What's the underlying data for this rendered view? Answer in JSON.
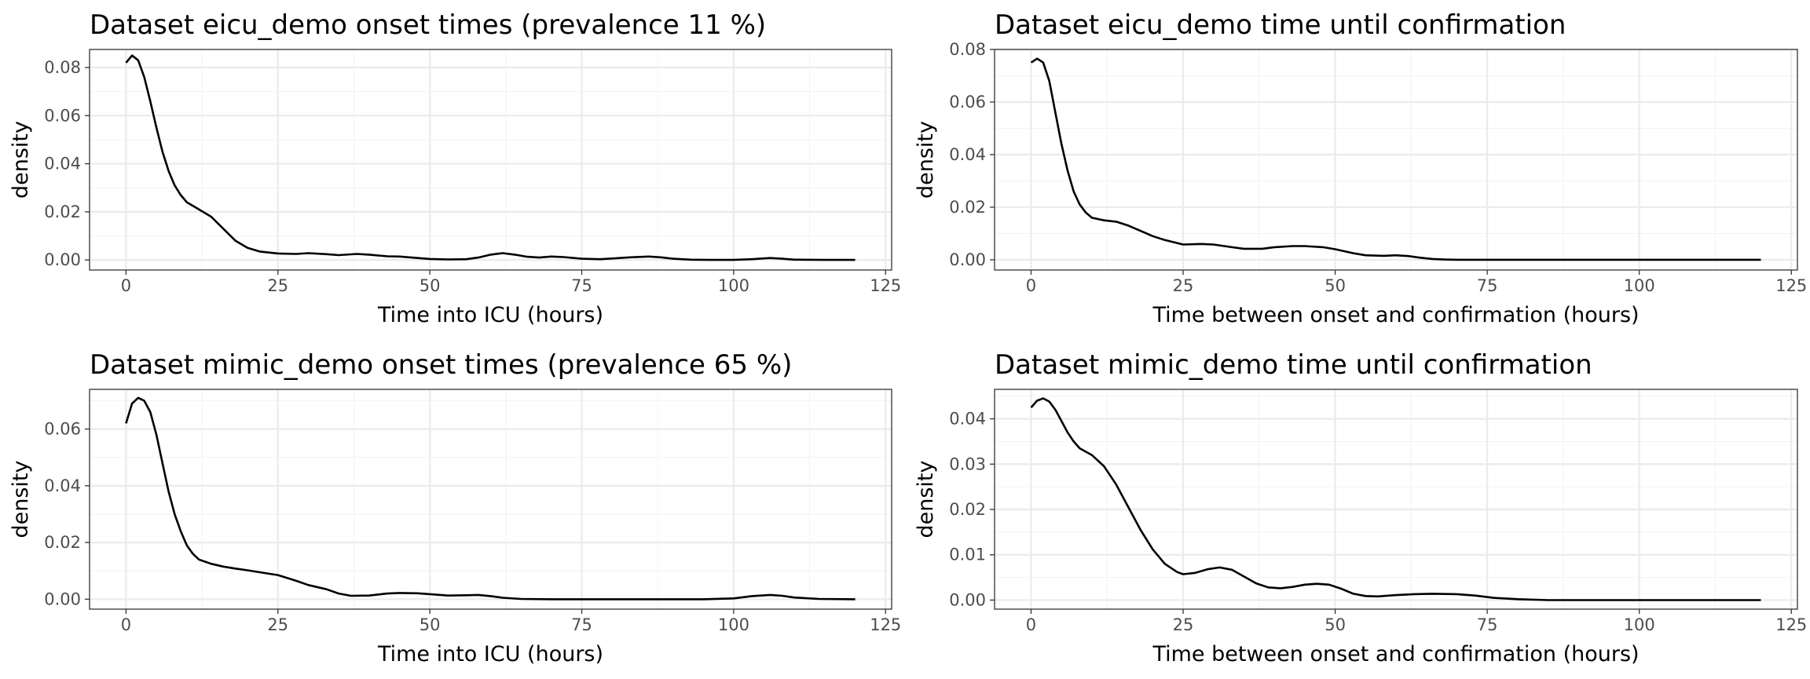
{
  "chart_data": [
    {
      "type": "line",
      "title": "Dataset eicu_demo onset times (prevalence 11 %)",
      "xlabel": "Time into ICU (hours)",
      "ylabel": "density",
      "xlim": [
        -6,
        126
      ],
      "ylim": [
        -0.0042,
        0.0875
      ],
      "x_ticks": [
        0,
        25,
        50,
        75,
        100,
        125
      ],
      "x_tick_labels": [
        "0",
        "25",
        "50",
        "75",
        "100",
        "125"
      ],
      "y_ticks": [
        0,
        0.02,
        0.04,
        0.06,
        0.08
      ],
      "y_tick_labels": [
        "0.00",
        "0.02",
        "0.04",
        "0.06",
        "0.08"
      ],
      "grid": true,
      "series": [
        {
          "x": [
            0,
            1,
            2,
            3,
            4,
            5,
            6,
            7,
            8,
            9,
            10,
            12,
            14,
            16,
            18,
            20,
            22,
            25,
            28,
            30,
            33,
            35,
            38,
            40,
            43,
            45,
            48,
            50,
            53,
            56,
            58,
            60,
            62,
            64,
            66,
            68,
            70,
            72,
            75,
            78,
            80,
            83,
            86,
            88,
            90,
            93,
            96,
            100,
            103,
            106,
            108,
            110,
            115,
            120
          ],
          "y": [
            0.082,
            0.085,
            0.083,
            0.076,
            0.066,
            0.055,
            0.045,
            0.037,
            0.031,
            0.027,
            0.024,
            0.021,
            0.018,
            0.013,
            0.008,
            0.005,
            0.0035,
            0.0027,
            0.0025,
            0.0028,
            0.0024,
            0.002,
            0.0025,
            0.0022,
            0.0015,
            0.0014,
            0.0008,
            0.0004,
            0.0002,
            0.0003,
            0.001,
            0.0022,
            0.0028,
            0.0022,
            0.0013,
            0.001,
            0.0014,
            0.0012,
            0.0005,
            0.0003,
            0.0006,
            0.0011,
            0.0014,
            0.0011,
            0.0005,
            0.0001,
            0.0,
            0.0,
            0.0003,
            0.0008,
            0.0005,
            0.0001,
            0.0,
            0.0
          ]
        }
      ]
    },
    {
      "type": "line",
      "title": "Dataset eicu_demo time until confirmation",
      "xlabel": "Time between onset and confirmation (hours)",
      "ylabel": "density",
      "xlim": [
        -6,
        126
      ],
      "ylim": [
        -0.0039,
        0.08
      ],
      "x_ticks": [
        0,
        25,
        50,
        75,
        100,
        125
      ],
      "x_tick_labels": [
        "0",
        "25",
        "50",
        "75",
        "100",
        "125"
      ],
      "y_ticks": [
        0,
        0.02,
        0.04,
        0.06,
        0.08
      ],
      "y_tick_labels": [
        "0.00",
        "0.02",
        "0.04",
        "0.06",
        "0.08"
      ],
      "grid": true,
      "series": [
        {
          "x": [
            0,
            1,
            2,
            3,
            4,
            5,
            6,
            7,
            8,
            9,
            10,
            12,
            14,
            16,
            18,
            20,
            22,
            25,
            28,
            30,
            33,
            35,
            38,
            40,
            43,
            45,
            48,
            50,
            53,
            55,
            58,
            60,
            62,
            64,
            66,
            68,
            70,
            75,
            80,
            90,
            100,
            110,
            120
          ],
          "y": [
            0.075,
            0.0765,
            0.075,
            0.068,
            0.056,
            0.044,
            0.034,
            0.026,
            0.021,
            0.018,
            0.016,
            0.015,
            0.0145,
            0.013,
            0.011,
            0.009,
            0.0075,
            0.0058,
            0.006,
            0.0058,
            0.0048,
            0.0042,
            0.0042,
            0.0048,
            0.0052,
            0.0052,
            0.0048,
            0.004,
            0.0025,
            0.0017,
            0.0015,
            0.0017,
            0.0014,
            0.0008,
            0.0003,
            0.0001,
            0.0,
            0.0,
            0.0,
            0.0,
            0.0,
            0.0,
            0.0
          ]
        }
      ]
    },
    {
      "type": "line",
      "title": "Dataset mimic_demo onset times (prevalence 65 %)",
      "xlabel": "Time into ICU (hours)",
      "ylabel": "density",
      "xlim": [
        -6,
        126
      ],
      "ylim": [
        -0.0035,
        0.074
      ],
      "x_ticks": [
        0,
        25,
        50,
        75,
        100,
        125
      ],
      "x_tick_labels": [
        "0",
        "25",
        "50",
        "75",
        "100",
        "125"
      ],
      "y_ticks": [
        0,
        0.02,
        0.04,
        0.06
      ],
      "y_tick_labels": [
        "0.00",
        "0.02",
        "0.04",
        "0.06"
      ],
      "grid": true,
      "series": [
        {
          "x": [
            0,
            1,
            2,
            3,
            4,
            5,
            6,
            7,
            8,
            9,
            10,
            11,
            12,
            14,
            16,
            18,
            20,
            22,
            25,
            28,
            30,
            33,
            35,
            37,
            40,
            43,
            45,
            48,
            50,
            53,
            56,
            58,
            60,
            62,
            65,
            70,
            80,
            90,
            95,
            100,
            103,
            106,
            108,
            110,
            114,
            120
          ],
          "y": [
            0.062,
            0.069,
            0.071,
            0.07,
            0.066,
            0.058,
            0.048,
            0.038,
            0.03,
            0.024,
            0.019,
            0.016,
            0.014,
            0.0125,
            0.0115,
            0.0108,
            0.0102,
            0.0095,
            0.0085,
            0.0065,
            0.005,
            0.0035,
            0.002,
            0.0012,
            0.0013,
            0.002,
            0.0022,
            0.0021,
            0.0018,
            0.0013,
            0.0014,
            0.0015,
            0.0011,
            0.0005,
            0.0001,
            0.0,
            0.0,
            0.0,
            0.0,
            0.0003,
            0.0011,
            0.0015,
            0.0012,
            0.0006,
            0.0001,
            0.0
          ]
        }
      ]
    },
    {
      "type": "line",
      "title": "Dataset mimic_demo time until confirmation",
      "xlabel": "Time between onset and confirmation (hours)",
      "ylabel": "density",
      "xlim": [
        -6,
        126
      ],
      "ylim": [
        -0.002,
        0.0465
      ],
      "x_ticks": [
        0,
        25,
        50,
        75,
        100,
        125
      ],
      "x_tick_labels": [
        "0",
        "25",
        "50",
        "75",
        "100",
        "125"
      ],
      "y_ticks": [
        0,
        0.01,
        0.02,
        0.03,
        0.04
      ],
      "y_tick_labels": [
        "0.00",
        "0.01",
        "0.02",
        "0.03",
        "0.04"
      ],
      "grid": true,
      "series": [
        {
          "x": [
            0,
            1,
            2,
            3,
            4,
            5,
            6,
            7,
            8,
            10,
            12,
            14,
            16,
            18,
            20,
            22,
            24,
            25,
            27,
            29,
            31,
            33,
            35,
            37,
            39,
            41,
            43,
            45,
            47,
            49,
            51,
            53,
            55,
            57,
            60,
            63,
            66,
            70,
            73,
            76,
            80,
            85,
            90,
            100,
            110,
            120
          ],
          "y": [
            0.0425,
            0.044,
            0.0445,
            0.0438,
            0.042,
            0.0395,
            0.037,
            0.035,
            0.0335,
            0.032,
            0.0295,
            0.0255,
            0.0205,
            0.0155,
            0.0112,
            0.008,
            0.0062,
            0.0057,
            0.006,
            0.0068,
            0.0072,
            0.0067,
            0.0052,
            0.0037,
            0.0028,
            0.0026,
            0.0029,
            0.0034,
            0.0036,
            0.0034,
            0.0025,
            0.0014,
            0.0009,
            0.0008,
            0.0011,
            0.0013,
            0.0014,
            0.0013,
            0.001,
            0.0005,
            0.0002,
            0.0,
            0.0,
            0.0,
            0.0,
            0.0
          ]
        }
      ]
    }
  ]
}
